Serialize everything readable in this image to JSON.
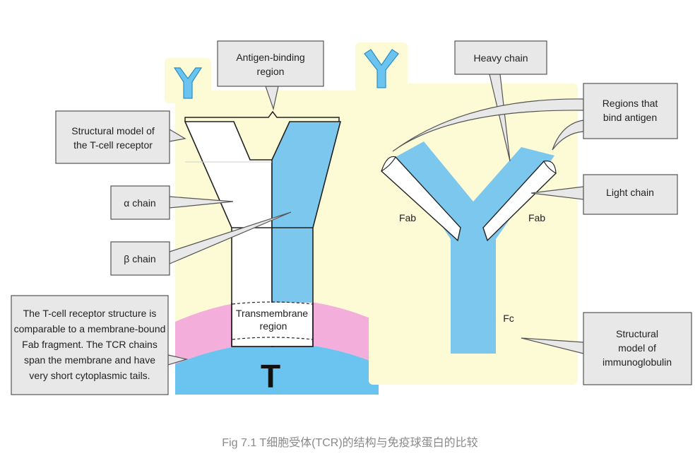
{
  "callouts": {
    "antigen_binding": [
      "Antigen-binding",
      "region"
    ],
    "structural_tcr": [
      "Structural model of",
      "the T-cell receptor"
    ],
    "alpha_chain": "α chain",
    "beta_chain": "β chain",
    "tcr_note": [
      "The T-cell receptor structure is",
      "comparable to a membrane-bound",
      "Fab fragment. The TCR chains",
      "span the membrane and have",
      "very short cytoplasmic tails."
    ],
    "heavy_chain": "Heavy chain",
    "regions_bind": [
      "Regions that",
      "bind antigen"
    ],
    "light_chain": "Light chain",
    "structural_ig": [
      "Structural",
      "model of",
      "immunoglobulin"
    ]
  },
  "labels": {
    "transmembrane": [
      "Transmembrane",
      "region"
    ],
    "t_cell": "T",
    "fab_left": "Fab",
    "fab_right": "Fab",
    "fc": "Fc"
  },
  "caption": "Fig 7.1 T细胞受体(TCR)的结构与免疫球蛋白的比较",
  "colors": {
    "panel": "#fdfbd6",
    "chain_blue": "#7cc7ee",
    "membrane_pink": "#f4aedb",
    "cell_blue": "#6bc4ef",
    "callout_fill": "#e8e8e8",
    "callout_border": "#555555"
  }
}
